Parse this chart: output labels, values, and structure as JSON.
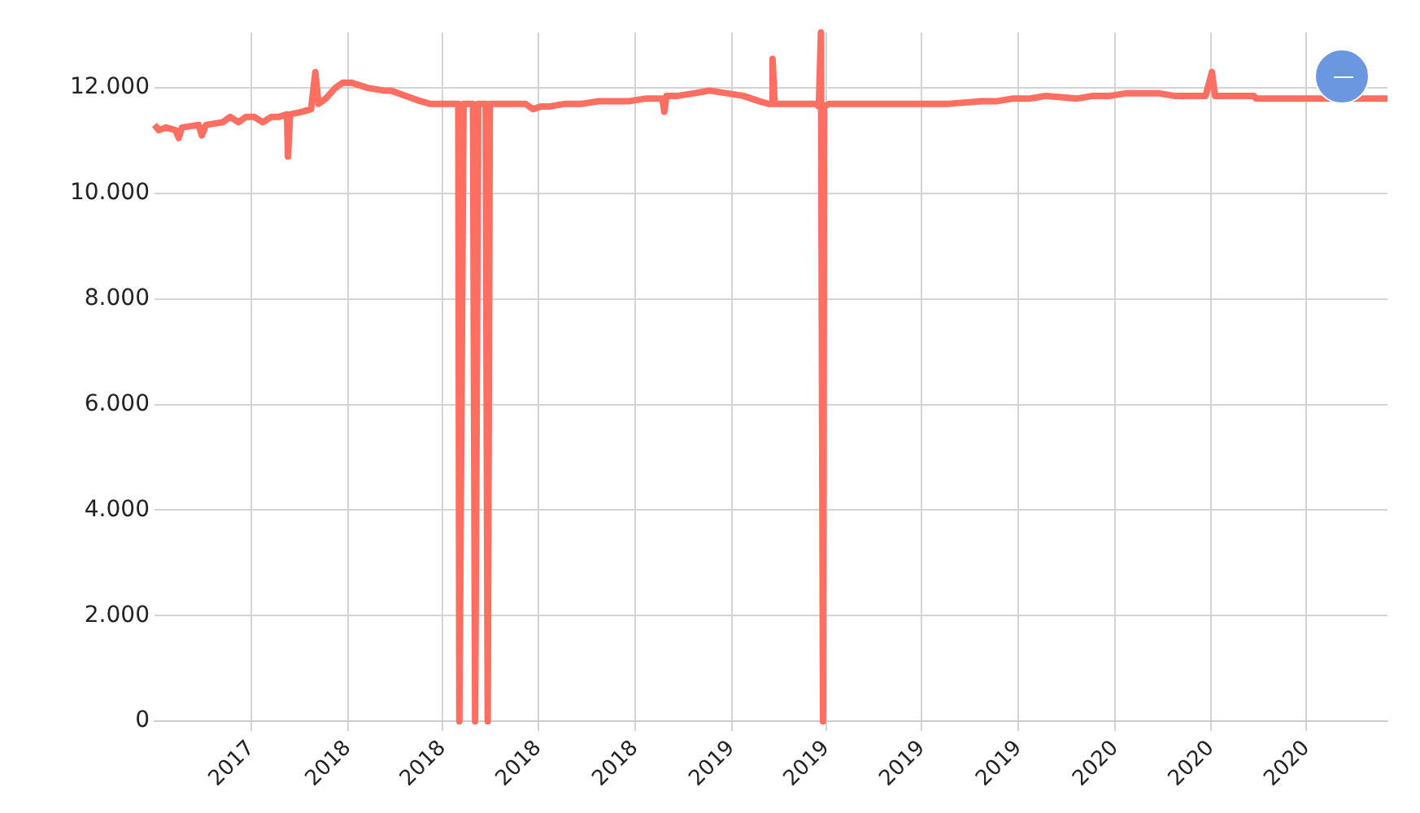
{
  "chart_data": {
    "type": "line",
    "line_style": "solid",
    "marker": "none",
    "grid": true,
    "legend": false,
    "xlim": [
      "2017-07-01",
      "2020-09-16"
    ],
    "ylim": [
      0,
      13050
    ],
    "xticks": [
      {
        "value": "2017-10",
        "label": "2017"
      },
      {
        "value": "2018-01",
        "label": "2018"
      },
      {
        "value": "2018-04",
        "label": "2018"
      },
      {
        "value": "2018-07",
        "label": "2018"
      },
      {
        "value": "2018-10",
        "label": "2018"
      },
      {
        "value": "2019-01",
        "label": "2019"
      },
      {
        "value": "2019-04",
        "label": "2019"
      },
      {
        "value": "2019-07",
        "label": "2019"
      },
      {
        "value": "2019-10",
        "label": "2019"
      },
      {
        "value": "2020-01",
        "label": "2020"
      },
      {
        "value": "2020-04",
        "label": "2020"
      },
      {
        "value": "2020-07",
        "label": "2020"
      }
    ],
    "yticks": [
      {
        "value": 0,
        "label": "0"
      },
      {
        "value": 2000,
        "label": "2.000"
      },
      {
        "value": 4000,
        "label": "4.000"
      },
      {
        "value": 6000,
        "label": "6.000"
      },
      {
        "value": 8000,
        "label": "8.000"
      },
      {
        "value": 10000,
        "label": "10.000"
      },
      {
        "value": 12000,
        "label": "12.000"
      }
    ],
    "x": [
      "2017-07-01",
      "2017-07-05",
      "2017-07-12",
      "2017-07-21",
      "2017-07-24",
      "2017-07-27",
      "2017-08-12",
      "2017-08-15",
      "2017-08-19",
      "2017-09-04",
      "2017-09-11",
      "2017-09-19",
      "2017-09-26",
      "2017-10-04",
      "2017-10-12",
      "2017-10-20",
      "2017-10-27",
      "2017-11-04",
      "2017-11-05",
      "2017-11-07",
      "2017-11-19",
      "2017-11-27",
      "2017-12-01",
      "2017-12-04",
      "2017-12-11",
      "2017-12-20",
      "2017-12-27",
      "2018-01-04",
      "2018-01-12",
      "2018-01-20",
      "2018-02-04",
      "2018-02-11",
      "2018-02-25",
      "2018-03-04",
      "2018-03-11",
      "2018-03-20",
      "2018-03-27",
      "2018-04-04",
      "2018-04-16",
      "2018-04-17",
      "2018-04-21",
      "2018-04-30",
      "2018-05-02",
      "2018-05-05",
      "2018-05-12",
      "2018-05-14",
      "2018-05-16",
      "2018-05-27",
      "2018-06-11",
      "2018-06-19",
      "2018-06-26",
      "2018-07-04",
      "2018-07-12",
      "2018-07-27",
      "2018-08-12",
      "2018-08-28",
      "2018-09-11",
      "2018-09-26",
      "2018-10-12",
      "2018-10-27",
      "2018-10-29",
      "2018-10-31",
      "2018-11-11",
      "2018-11-27",
      "2018-12-11",
      "2018-12-27",
      "2019-01-12",
      "2019-01-27",
      "2019-02-05",
      "2019-02-08",
      "2019-02-09",
      "2019-02-11",
      "2019-02-25",
      "2019-03-11",
      "2019-03-22",
      "2019-03-25",
      "2019-03-27",
      "2019-03-29",
      "2019-03-30",
      "2019-04-04",
      "2019-04-26",
      "2019-05-27",
      "2019-06-26",
      "2019-07-27",
      "2019-08-27",
      "2019-09-11",
      "2019-09-26",
      "2019-10-12",
      "2019-10-27",
      "2019-11-26",
      "2019-12-11",
      "2019-12-27",
      "2020-01-12",
      "2020-01-27",
      "2020-02-11",
      "2020-02-26",
      "2020-03-27",
      "2020-04-02",
      "2020-04-05",
      "2020-05-12",
      "2020-05-14",
      "2020-06-11",
      "2020-07-12",
      "2020-09-16"
    ],
    "series": [
      {
        "color": "#ff6f61",
        "values": [
          11300,
          11200,
          11250,
          11200,
          11050,
          11250,
          11300,
          11100,
          11300,
          11350,
          11450,
          11350,
          11450,
          11450,
          11350,
          11450,
          11450,
          11500,
          10700,
          11500,
          11550,
          11600,
          12300,
          11700,
          11800,
          12000,
          12100,
          12100,
          12050,
          12000,
          11950,
          11950,
          11850,
          11800,
          11750,
          11700,
          11700,
          11700,
          11700,
          0,
          11700,
          11700,
          0,
          11700,
          11700,
          0,
          11700,
          11700,
          11700,
          11700,
          11600,
          11650,
          11650,
          11700,
          11700,
          11750,
          11750,
          11750,
          11800,
          11800,
          11550,
          11850,
          11850,
          11900,
          11950,
          11900,
          11850,
          11750,
          11700,
          11700,
          12550,
          11700,
          11700,
          11700,
          11700,
          11650,
          13050,
          0,
          11650,
          11700,
          11700,
          11700,
          11700,
          11700,
          11750,
          11750,
          11800,
          11800,
          11850,
          11800,
          11850,
          11850,
          11900,
          11900,
          11900,
          11850,
          11850,
          12300,
          11850,
          11850,
          11800,
          11800,
          11800,
          11800
        ]
      }
    ]
  }
}
